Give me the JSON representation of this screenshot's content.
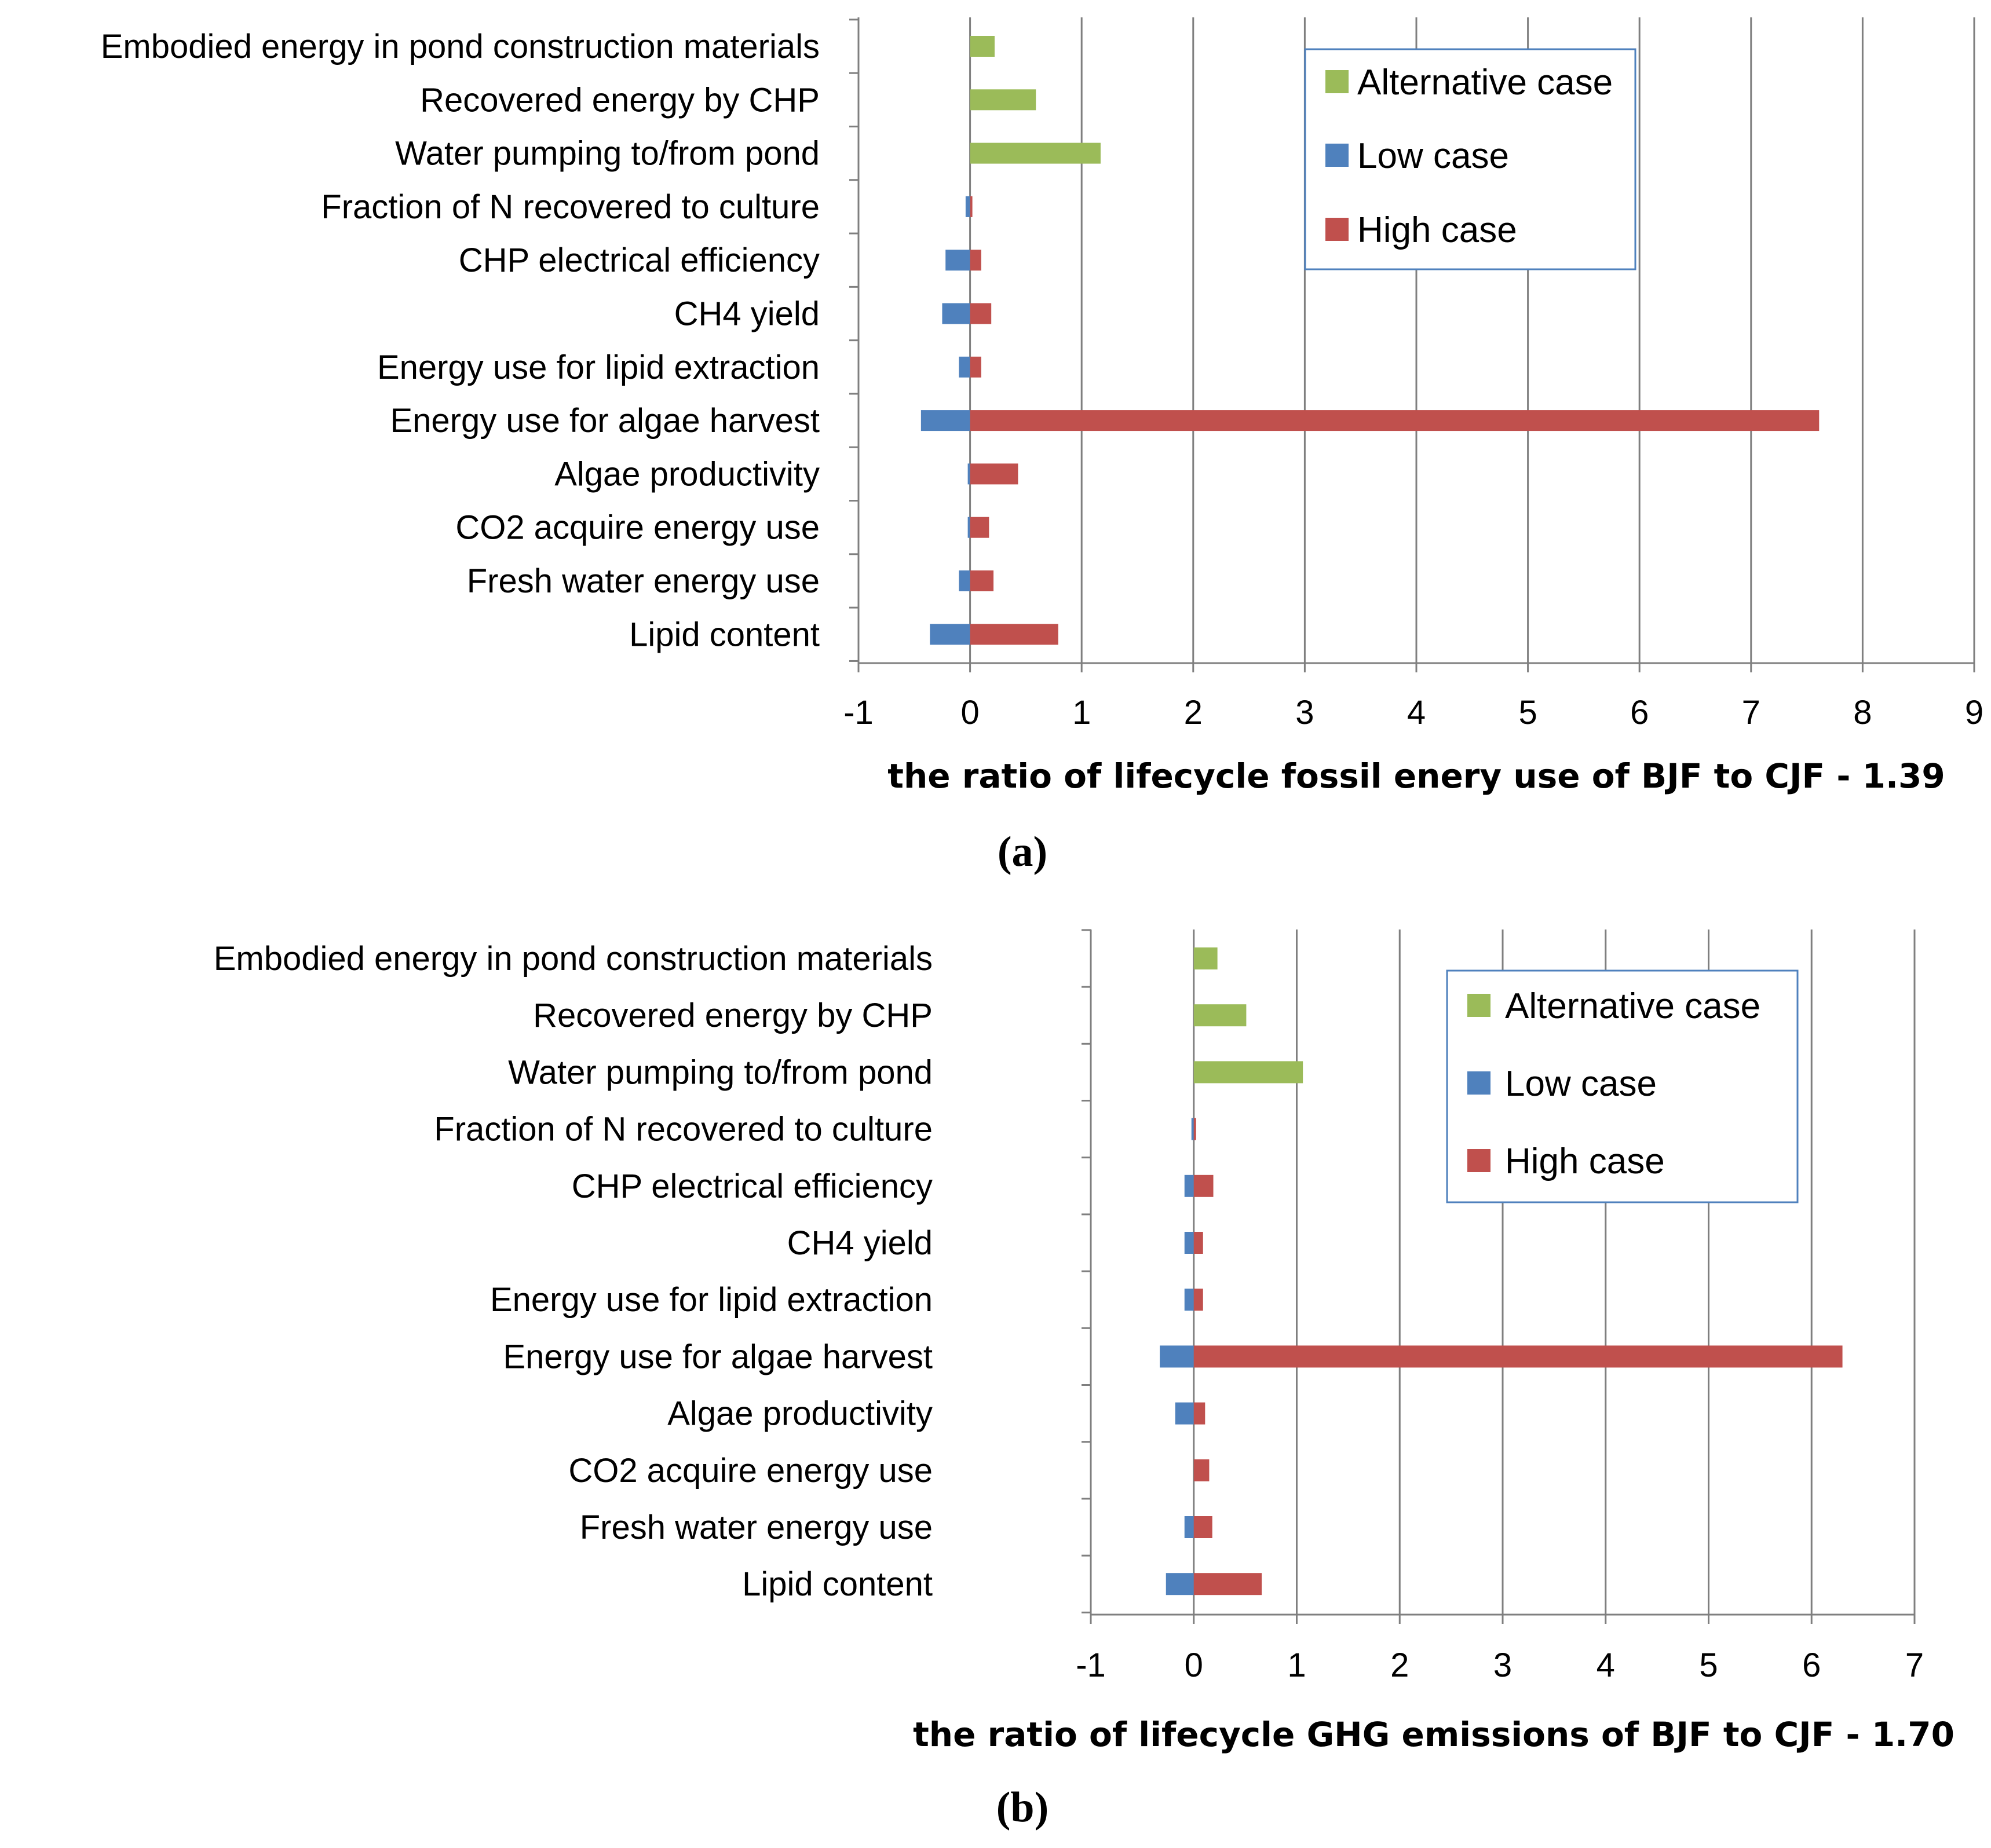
{
  "colors": {
    "alternative": "#9bbb59",
    "low": "#4f81bd",
    "high": "#c0504d"
  },
  "chart_data": [
    {
      "type": "bar",
      "orientation": "horizontal",
      "panel_label": "(a)",
      "title": "",
      "xlabel": "the ratio of lifecycle fossil enery use of BJF to CJF - 1.39",
      "ylabel": "",
      "xlim": [
        -1,
        9
      ],
      "xticks": [
        "-1",
        "0",
        "1",
        "2",
        "3",
        "4",
        "5",
        "6",
        "7",
        "8",
        "9"
      ],
      "grid": "vertical",
      "legend_position": "top-right",
      "categories": [
        "Embodied energy in pond construction materials",
        "Recovered energy by CHP",
        "Water pumping to/from pond",
        "Fraction of N recovered to culture",
        "CHP electrical efficiency",
        "CH4 yield",
        "Energy use for lipid extraction",
        "Energy use for algae harvest",
        "Algae productivity",
        "CO2 acquire energy use",
        "Fresh water energy use",
        "Lipid content"
      ],
      "series": [
        {
          "name": "Alternative case",
          "color_key": "alternative",
          "values": [
            0.22,
            0.59,
            1.17,
            null,
            null,
            null,
            null,
            null,
            null,
            null,
            null,
            null
          ]
        },
        {
          "name": "Low case",
          "color_key": "low",
          "values": [
            null,
            null,
            null,
            -0.04,
            -0.22,
            -0.25,
            -0.1,
            -0.44,
            -0.02,
            -0.02,
            -0.1,
            -0.36
          ]
        },
        {
          "name": "High case",
          "color_key": "high",
          "values": [
            null,
            null,
            null,
            0.01,
            0.1,
            0.19,
            0.1,
            7.61,
            0.43,
            0.17,
            0.21,
            0.79
          ]
        }
      ]
    },
    {
      "type": "bar",
      "orientation": "horizontal",
      "panel_label": "(b)",
      "title": "",
      "xlabel": "the ratio of lifecycle GHG emissions of BJF to CJF - 1.70",
      "ylabel": "",
      "xlim": [
        -1,
        7
      ],
      "xticks": [
        "-1",
        "0",
        "1",
        "2",
        "3",
        "4",
        "5",
        "6",
        "7"
      ],
      "grid": "vertical",
      "legend_position": "top-right",
      "categories": [
        "Embodied energy in pond construction materials",
        "Recovered energy by CHP",
        "Water pumping to/from pond",
        "Fraction of N recovered to culture",
        "CHP electrical efficiency",
        "CH4 yield",
        "Energy use for lipid extraction",
        "Energy use for algae harvest",
        "Algae productivity",
        "CO2 acquire energy use",
        "Fresh water energy use",
        "Lipid content"
      ],
      "series": [
        {
          "name": "Alternative case",
          "color_key": "alternative",
          "values": [
            0.23,
            0.51,
            1.06,
            null,
            null,
            null,
            null,
            null,
            null,
            null,
            null,
            null
          ]
        },
        {
          "name": "Low case",
          "color_key": "low",
          "values": [
            null,
            null,
            null,
            -0.02,
            -0.09,
            -0.09,
            -0.09,
            -0.33,
            -0.18,
            null,
            -0.09,
            -0.27
          ]
        },
        {
          "name": "High case",
          "color_key": "high",
          "values": [
            null,
            null,
            null,
            0.02,
            0.19,
            0.09,
            0.09,
            6.3,
            0.11,
            0.15,
            0.18,
            0.66
          ]
        }
      ]
    }
  ]
}
